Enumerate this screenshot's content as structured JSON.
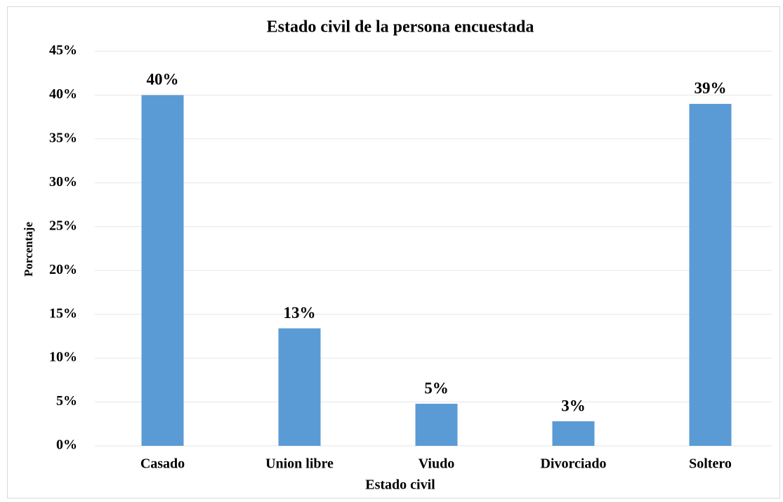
{
  "chart_data": {
    "type": "bar",
    "title": "Estado civil de la persona encuestada",
    "x_label": "Estado civil",
    "y_label": "Porcentaje",
    "categories": [
      "Casado",
      "Union libre",
      "Viudo",
      "Divorciado",
      "Soltero"
    ],
    "values": [
      40,
      13.4,
      4.8,
      2.8,
      39
    ],
    "value_labels": [
      "40%",
      "13%",
      "5%",
      "3%",
      "39%"
    ],
    "color": "#5b9bd5",
    "ylim": [
      0,
      45
    ],
    "yticks": [
      {
        "value": 0,
        "label": "0%"
      },
      {
        "value": 5,
        "label": "5%"
      },
      {
        "value": 10,
        "label": "10%"
      },
      {
        "value": 15,
        "label": "15%"
      },
      {
        "value": 20,
        "label": "20%"
      },
      {
        "value": 25,
        "label": "25%"
      },
      {
        "value": 30,
        "label": "30%"
      },
      {
        "value": 35,
        "label": "35%"
      },
      {
        "value": 40,
        "label": "40%"
      },
      {
        "value": 45,
        "label": "45%"
      }
    ],
    "grid": true
  }
}
